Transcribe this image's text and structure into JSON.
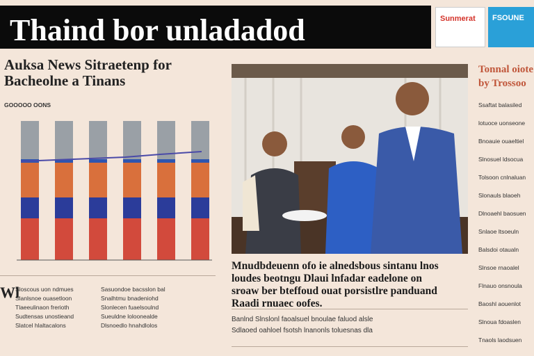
{
  "masthead": {
    "title": "Thaind bor unladadod"
  },
  "ads": [
    "Sunmerat",
    "FSOUNE"
  ],
  "headline": {
    "lines": [
      "Auksa News Sitraetenp for",
      "Bacheolne a Tinans"
    ]
  },
  "chart": {
    "label": "GOOOOO OONS"
  },
  "left_text": {
    "lead": "Wl",
    "lines": [
      "Sloscous uon ndmues",
      "Slanlsnoe ouasetloon",
      "Tlaeeulinaon frerioth",
      "Sudtensas unostieand",
      "Slatcel hlaltacalons"
    ]
  },
  "left_text2": {
    "lines": [
      "Sasuondoe bacsslon bal",
      "Snalhtmu bnadeniohd",
      "Slonlecen fuaelsoulnd",
      "Sueuldne loloonealde",
      "Dlsnoedlo hnahdlolos"
    ]
  },
  "caption": {
    "lines": [
      "Mnudbdeuenn ofo ie alnedsbous sintanu lnos",
      "loudes beotngu Dlaui lnfadar eadelone on",
      "sroaw ber bteffoud ouat porsistlre panduand",
      "Raadi rnuaec oofes."
    ]
  },
  "body": {
    "lines": [
      "Banlnd Slnslonl faoalsuel bnoulae faluod alsle",
      "Sdlaoed oahloel fsotsh lnanonls toluesnas dla"
    ]
  },
  "sidebar": {
    "headline": [
      "Tonnal oiote",
      "by Trossoo"
    ],
    "lines": [
      "Ssaftat balasiled",
      "lotuoce uonseone",
      "Bnoauie ouaeltiel",
      "Slnosuel ldsocua",
      "Tolsoon cnlnaluan",
      "Slonauls blaoeh",
      "Dlnoaehl baosuen",
      "Snlaoe ltsoeuln",
      "Balsdoi otaualn",
      "Slnsoe rnaoalel",
      "Flnauo onsnoula",
      "Baoshl aouenlot",
      "Slnoua fdoaslen",
      "Tnaols laodsuen"
    ]
  }
}
